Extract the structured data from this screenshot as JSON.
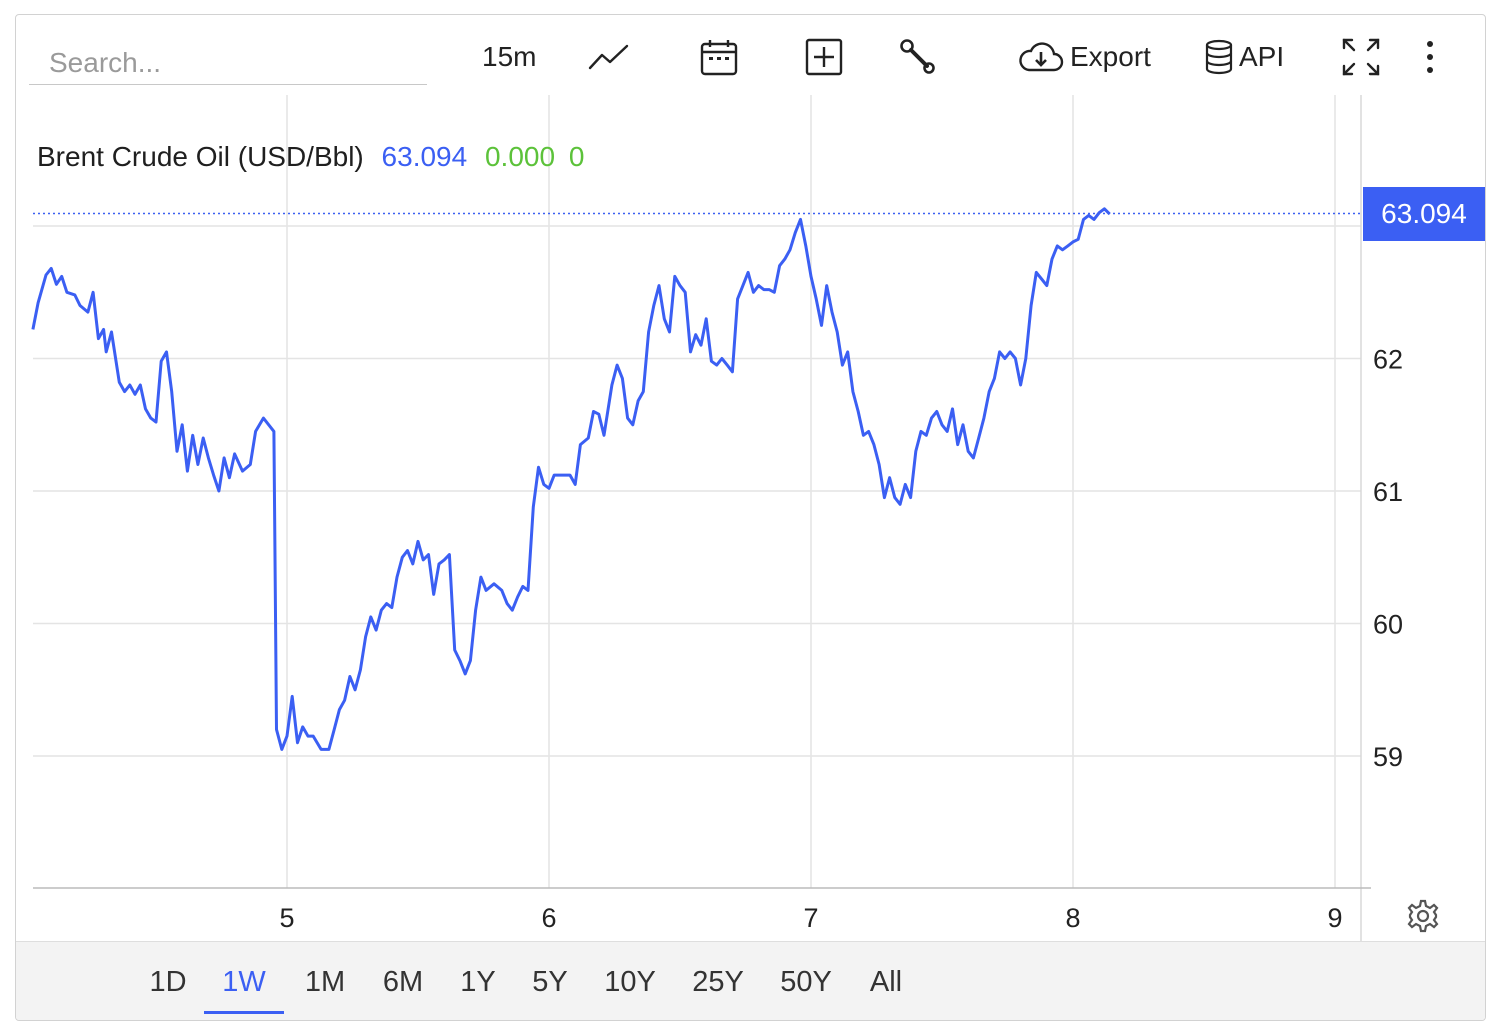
{
  "search": {
    "placeholder": "Search..."
  },
  "toolbar": {
    "interval_label": "15m",
    "export_label": "Export",
    "api_label": "API",
    "icons": [
      "line-chart-icon",
      "calendar-icon",
      "add-box-icon",
      "wrench-icon",
      "cloud-download-icon",
      "database-icon",
      "fullscreen-icon",
      "more-vertical-icon"
    ]
  },
  "legend": {
    "name": "Brent Crude Oil (USD/Bbl)",
    "price": "63.094",
    "change": "0.000",
    "change_pct": "0"
  },
  "price_tag": "63.094",
  "colors": {
    "line": "#3b5ff3",
    "change_positive": "#5cc23a",
    "accent": "#3b5ff3"
  },
  "range_buttons": [
    "1D",
    "1W",
    "1M",
    "6M",
    "1Y",
    "5Y",
    "10Y",
    "25Y",
    "50Y",
    "All"
  ],
  "range_active": "1W",
  "chart_data": {
    "type": "line",
    "title": "Brent Crude Oil (USD/Bbl)",
    "xlabel": "",
    "ylabel": "",
    "x_ticks": [
      5,
      6,
      7,
      8,
      9
    ],
    "y_ticks": [
      59,
      60,
      61,
      62
    ],
    "xlim": [
      4.03,
      9.3
    ],
    "ylim": [
      58.0,
      63.7
    ],
    "last_value": 63.094,
    "grid": true,
    "series": [
      {
        "name": "Brent Crude Oil",
        "points": [
          [
            4.03,
            62.22
          ],
          [
            4.05,
            62.42
          ],
          [
            4.08,
            62.63
          ],
          [
            4.1,
            62.68
          ],
          [
            4.12,
            62.56
          ],
          [
            4.14,
            62.62
          ],
          [
            4.16,
            62.5
          ],
          [
            4.19,
            62.48
          ],
          [
            4.21,
            62.4
          ],
          [
            4.24,
            62.35
          ],
          [
            4.26,
            62.5
          ],
          [
            4.28,
            62.15
          ],
          [
            4.3,
            62.22
          ],
          [
            4.31,
            62.05
          ],
          [
            4.33,
            62.2
          ],
          [
            4.36,
            61.82
          ],
          [
            4.38,
            61.75
          ],
          [
            4.4,
            61.8
          ],
          [
            4.42,
            61.73
          ],
          [
            4.44,
            61.8
          ],
          [
            4.46,
            61.62
          ],
          [
            4.48,
            61.55
          ],
          [
            4.5,
            61.52
          ],
          [
            4.52,
            61.98
          ],
          [
            4.54,
            62.05
          ],
          [
            4.56,
            61.75
          ],
          [
            4.58,
            61.3
          ],
          [
            4.6,
            61.5
          ],
          [
            4.62,
            61.15
          ],
          [
            4.64,
            61.42
          ],
          [
            4.66,
            61.2
          ],
          [
            4.68,
            61.4
          ],
          [
            4.7,
            61.25
          ],
          [
            4.72,
            61.12
          ],
          [
            4.74,
            61.0
          ],
          [
            4.76,
            61.25
          ],
          [
            4.78,
            61.1
          ],
          [
            4.8,
            61.28
          ],
          [
            4.83,
            61.15
          ],
          [
            4.86,
            61.2
          ],
          [
            4.88,
            61.45
          ],
          [
            4.91,
            61.55
          ],
          [
            4.93,
            61.5
          ],
          [
            4.95,
            61.45
          ],
          [
            4.96,
            59.2
          ],
          [
            4.98,
            59.05
          ],
          [
            5.0,
            59.15
          ],
          [
            5.02,
            59.45
          ],
          [
            5.04,
            59.1
          ],
          [
            5.06,
            59.22
          ],
          [
            5.08,
            59.15
          ],
          [
            5.1,
            59.15
          ],
          [
            5.13,
            59.05
          ],
          [
            5.16,
            59.05
          ],
          [
            5.18,
            59.2
          ],
          [
            5.2,
            59.35
          ],
          [
            5.22,
            59.42
          ],
          [
            5.24,
            59.6
          ],
          [
            5.26,
            59.5
          ],
          [
            5.28,
            59.65
          ],
          [
            5.3,
            59.9
          ],
          [
            5.32,
            60.05
          ],
          [
            5.34,
            59.95
          ],
          [
            5.36,
            60.1
          ],
          [
            5.38,
            60.15
          ],
          [
            5.4,
            60.12
          ],
          [
            5.42,
            60.35
          ],
          [
            5.44,
            60.5
          ],
          [
            5.46,
            60.55
          ],
          [
            5.48,
            60.45
          ],
          [
            5.5,
            60.62
          ],
          [
            5.52,
            60.48
          ],
          [
            5.54,
            60.52
          ],
          [
            5.56,
            60.22
          ],
          [
            5.58,
            60.45
          ],
          [
            5.6,
            60.48
          ],
          [
            5.62,
            60.52
          ],
          [
            5.64,
            59.8
          ],
          [
            5.66,
            59.72
          ],
          [
            5.68,
            59.62
          ],
          [
            5.7,
            59.72
          ],
          [
            5.72,
            60.1
          ],
          [
            5.74,
            60.35
          ],
          [
            5.76,
            60.25
          ],
          [
            5.79,
            60.3
          ],
          [
            5.82,
            60.25
          ],
          [
            5.84,
            60.15
          ],
          [
            5.86,
            60.1
          ],
          [
            5.88,
            60.2
          ],
          [
            5.9,
            60.28
          ],
          [
            5.92,
            60.25
          ],
          [
            5.94,
            60.88
          ],
          [
            5.96,
            61.18
          ],
          [
            5.98,
            61.05
          ],
          [
            6.0,
            61.02
          ],
          [
            6.02,
            61.12
          ],
          [
            6.05,
            61.12
          ],
          [
            6.08,
            61.12
          ],
          [
            6.1,
            61.05
          ],
          [
            6.12,
            61.35
          ],
          [
            6.15,
            61.4
          ],
          [
            6.17,
            61.6
          ],
          [
            6.19,
            61.58
          ],
          [
            6.21,
            61.42
          ],
          [
            6.24,
            61.8
          ],
          [
            6.26,
            61.95
          ],
          [
            6.28,
            61.85
          ],
          [
            6.3,
            61.55
          ],
          [
            6.32,
            61.5
          ],
          [
            6.34,
            61.68
          ],
          [
            6.36,
            61.75
          ],
          [
            6.38,
            62.2
          ],
          [
            6.4,
            62.4
          ],
          [
            6.42,
            62.55
          ],
          [
            6.44,
            62.3
          ],
          [
            6.46,
            62.2
          ],
          [
            6.48,
            62.62
          ],
          [
            6.5,
            62.55
          ],
          [
            6.52,
            62.5
          ],
          [
            6.54,
            62.05
          ],
          [
            6.56,
            62.18
          ],
          [
            6.58,
            62.1
          ],
          [
            6.6,
            62.3
          ],
          [
            6.62,
            61.98
          ],
          [
            6.64,
            61.95
          ],
          [
            6.66,
            62.0
          ],
          [
            6.68,
            61.95
          ],
          [
            6.7,
            61.9
          ],
          [
            6.72,
            62.45
          ],
          [
            6.74,
            62.55
          ],
          [
            6.76,
            62.65
          ],
          [
            6.78,
            62.5
          ],
          [
            6.8,
            62.55
          ],
          [
            6.82,
            62.52
          ],
          [
            6.84,
            62.52
          ],
          [
            6.86,
            62.5
          ],
          [
            6.88,
            62.7
          ],
          [
            6.9,
            62.75
          ],
          [
            6.92,
            62.82
          ],
          [
            6.94,
            62.95
          ],
          [
            6.96,
            63.05
          ],
          [
            6.98,
            62.85
          ],
          [
            7.0,
            62.62
          ],
          [
            7.02,
            62.45
          ],
          [
            7.04,
            62.25
          ],
          [
            7.06,
            62.55
          ],
          [
            7.08,
            62.35
          ],
          [
            7.1,
            62.2
          ],
          [
            7.12,
            61.95
          ],
          [
            7.14,
            62.05
          ],
          [
            7.16,
            61.75
          ],
          [
            7.18,
            61.6
          ],
          [
            7.2,
            61.42
          ],
          [
            7.22,
            61.45
          ],
          [
            7.24,
            61.35
          ],
          [
            7.26,
            61.2
          ],
          [
            7.28,
            60.95
          ],
          [
            7.3,
            61.1
          ],
          [
            7.32,
            60.95
          ],
          [
            7.34,
            60.9
          ],
          [
            7.36,
            61.05
          ],
          [
            7.38,
            60.95
          ],
          [
            7.4,
            61.3
          ],
          [
            7.42,
            61.45
          ],
          [
            7.44,
            61.42
          ],
          [
            7.46,
            61.55
          ],
          [
            7.48,
            61.6
          ],
          [
            7.5,
            61.5
          ],
          [
            7.52,
            61.45
          ],
          [
            7.54,
            61.62
          ],
          [
            7.56,
            61.35
          ],
          [
            7.58,
            61.5
          ],
          [
            7.6,
            61.3
          ],
          [
            7.62,
            61.25
          ],
          [
            7.64,
            61.4
          ],
          [
            7.66,
            61.55
          ],
          [
            7.68,
            61.75
          ],
          [
            7.7,
            61.85
          ],
          [
            7.72,
            62.05
          ],
          [
            7.74,
            62.0
          ],
          [
            7.76,
            62.05
          ],
          [
            7.78,
            62.0
          ],
          [
            7.8,
            61.8
          ],
          [
            7.82,
            62.0
          ],
          [
            7.84,
            62.4
          ],
          [
            7.86,
            62.65
          ],
          [
            7.88,
            62.6
          ],
          [
            7.9,
            62.55
          ],
          [
            7.92,
            62.75
          ],
          [
            7.94,
            62.85
          ],
          [
            7.96,
            62.82
          ],
          [
            7.98,
            62.85
          ],
          [
            8.0,
            62.88
          ],
          [
            8.02,
            62.9
          ],
          [
            8.04,
            63.05
          ],
          [
            8.06,
            63.08
          ],
          [
            8.08,
            63.05
          ],
          [
            8.1,
            63.1
          ],
          [
            8.12,
            63.13
          ],
          [
            8.14,
            63.09
          ]
        ]
      }
    ]
  }
}
